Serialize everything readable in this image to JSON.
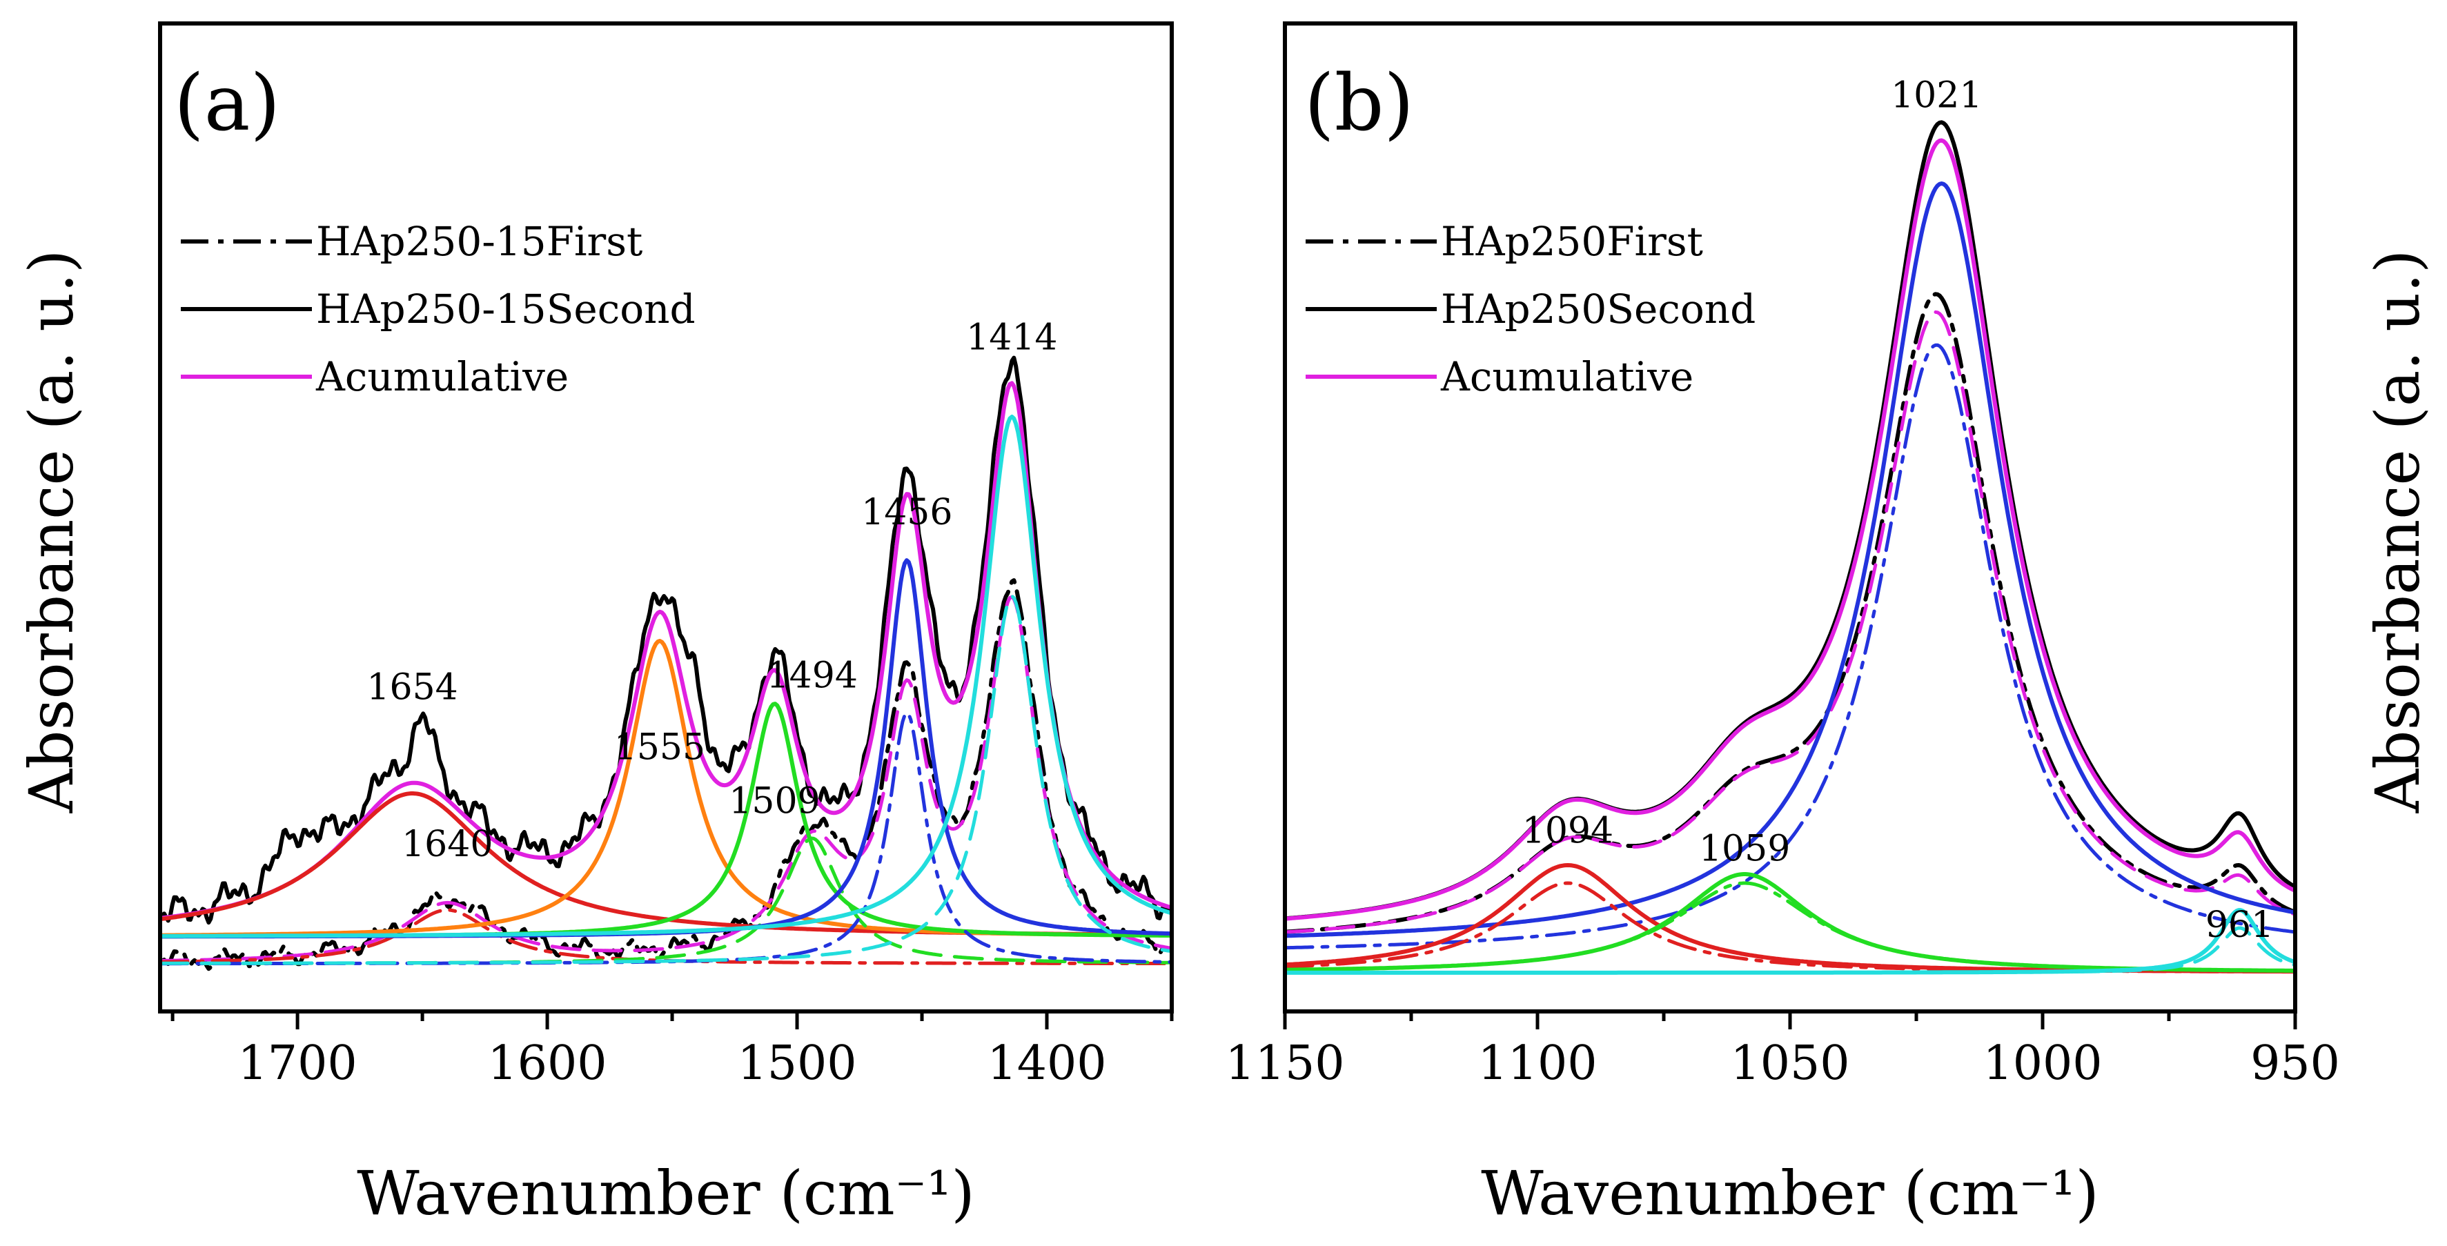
{
  "chart_data": [
    {
      "type": "line",
      "panel_label": "(a)",
      "xlabel": "Wavenumber (cm⁻¹)",
      "ylabel": "Absorbance (a. u.)",
      "xlim": [
        1755,
        1350
      ],
      "ylim": [
        0,
        1.0
      ],
      "ticks": [
        {
          "value": 1700,
          "label": "1700"
        },
        {
          "value": 1600,
          "label": "1600"
        },
        {
          "value": 1500,
          "label": "1500"
        },
        {
          "value": 1400,
          "label": "1400"
        }
      ],
      "legend": [
        {
          "label": "HAp250-15First",
          "dash": "dashdot",
          "color": "#000000"
        },
        {
          "label": "HAp250-15Second",
          "dash": "solid",
          "color": "#000000"
        },
        {
          "label": "Acumulative",
          "dash": "solid",
          "color": "#e020e0"
        }
      ],
      "peak_labels": [
        {
          "x": 1654,
          "y": 0.305,
          "text": "1654"
        },
        {
          "x": 1640,
          "y": 0.13,
          "text": "1640"
        },
        {
          "x": 1555,
          "y": 0.238,
          "text": "1555"
        },
        {
          "x": 1494,
          "y": 0.318,
          "text": "1494"
        },
        {
          "x": 1509,
          "y": 0.178,
          "text": "1509"
        },
        {
          "x": 1456,
          "y": 0.5,
          "text": "1456"
        },
        {
          "x": 1414,
          "y": 0.695,
          "text": "1414"
        }
      ],
      "series": [
        {
          "name": "HAp250-15Second",
          "color": "#000000",
          "dash": "solid",
          "width": 6,
          "baseline": 0.04,
          "noise": 0.018,
          "peaks": [
            {
              "x": 1654,
              "amp": 0.17,
              "w": 35
            },
            {
              "x": 1555,
              "amp": 0.34,
              "w": 15
            },
            {
              "x": 1509,
              "amp": 0.24,
              "w": 12
            },
            {
              "x": 1456,
              "amp": 0.45,
              "w": 11
            },
            {
              "x": 1414,
              "amp": 0.61,
              "w": 13
            },
            {
              "x": 1700,
              "amp": 0.05,
              "w": 10
            },
            {
              "x": 1650,
              "amp": 0.06,
              "w": 5
            },
            {
              "x": 1540,
              "amp": 0.06,
              "w": 5
            }
          ]
        },
        {
          "name": "HAp250-15First",
          "color": "#000000",
          "dash": "dashdot",
          "width": 6,
          "baseline": 0.01,
          "noise": 0.01,
          "peaks": [
            {
              "x": 1640,
              "amp": 0.07,
              "w": 22
            },
            {
              "x": 1494,
              "amp": 0.13,
              "w": 15
            },
            {
              "x": 1456,
              "amp": 0.29,
              "w": 10
            },
            {
              "x": 1414,
              "amp": 0.41,
              "w": 12
            }
          ]
        },
        {
          "name": "Acumulative",
          "color": "#e020e0",
          "dash": "solid",
          "width": 6,
          "baseline": 0.04,
          "peaks": [
            {
              "x": 1654,
              "amp": 0.16,
              "w": 35
            },
            {
              "x": 1555,
              "amp": 0.32,
              "w": 15
            },
            {
              "x": 1509,
              "amp": 0.23,
              "w": 12
            },
            {
              "x": 1456,
              "amp": 0.42,
              "w": 11
            },
            {
              "x": 1414,
              "amp": 0.58,
              "w": 13
            }
          ]
        },
        {
          "name": "Acumulative (First)",
          "color": "#e020e0",
          "dash": "dashed",
          "width": 5,
          "baseline": 0.01,
          "peaks": [
            {
              "x": 1640,
              "amp": 0.065,
              "w": 22
            },
            {
              "x": 1494,
              "amp": 0.12,
              "w": 15
            },
            {
              "x": 1456,
              "amp": 0.27,
              "w": 10
            },
            {
              "x": 1414,
              "amp": 0.39,
              "w": 12
            }
          ]
        },
        {
          "name": "1654",
          "color": "#e02020",
          "dash": "solid",
          "width": 6,
          "baseline": 0.04,
          "peaks": [
            {
              "x": 1654,
              "amp": 0.16,
              "w": 38
            }
          ]
        },
        {
          "name": "1640",
          "color": "#e02020",
          "dash": "dashdot",
          "width": 5,
          "baseline": 0.01,
          "peaks": [
            {
              "x": 1640,
              "amp": 0.06,
              "w": 22
            }
          ]
        },
        {
          "name": "1555",
          "color": "#ff8010",
          "dash": "solid",
          "width": 6,
          "baseline": 0.04,
          "peaks": [
            {
              "x": 1555,
              "amp": 0.33,
              "w": 15
            }
          ]
        },
        {
          "name": "1509",
          "color": "#22dd22",
          "dash": "solid",
          "width": 6,
          "baseline": 0.04,
          "peaks": [
            {
              "x": 1509,
              "amp": 0.26,
              "w": 12
            }
          ]
        },
        {
          "name": "1494",
          "color": "#22dd22",
          "dash": "dashed",
          "width": 5,
          "baseline": 0.01,
          "peaks": [
            {
              "x": 1494,
              "amp": 0.14,
              "w": 14
            }
          ]
        },
        {
          "name": "1456",
          "color": "#2233dd",
          "dash": "solid",
          "width": 6,
          "baseline": 0.04,
          "peaks": [
            {
              "x": 1456,
              "amp": 0.42,
              "w": 10
            }
          ]
        },
        {
          "name": "1456 (First)",
          "color": "#2233dd",
          "dash": "dashdot",
          "width": 5,
          "baseline": 0.01,
          "peaks": [
            {
              "x": 1456,
              "amp": 0.28,
              "w": 9
            }
          ]
        },
        {
          "name": "1414",
          "color": "#22dddd",
          "dash": "solid",
          "width": 6,
          "baseline": 0.04,
          "peaks": [
            {
              "x": 1414,
              "amp": 0.58,
              "w": 14
            }
          ]
        },
        {
          "name": "1414 (First)",
          "color": "#22dddd",
          "dash": "dashed",
          "width": 5,
          "baseline": 0.01,
          "peaks": [
            {
              "x": 1414,
              "amp": 0.41,
              "w": 12
            }
          ]
        }
      ]
    },
    {
      "type": "line",
      "panel_label": "(b)",
      "xlabel": "Wavenumber (cm⁻¹)",
      "ylabel": "Absorbance (a. u.)",
      "xlim": [
        1150,
        950
      ],
      "ylim": [
        0,
        1.0
      ],
      "ticks": [
        {
          "value": 1150,
          "label": "1150"
        },
        {
          "value": 1100,
          "label": "1100"
        },
        {
          "value": 1050,
          "label": "1050"
        },
        {
          "value": 1000,
          "label": "1000"
        },
        {
          "value": 950,
          "label": "950"
        }
      ],
      "legend": [
        {
          "label": "HAp250First",
          "dash": "dashdot",
          "color": "#000000"
        },
        {
          "label": "HAp250Second",
          "dash": "solid",
          "color": "#000000"
        },
        {
          "label": "Acumulative",
          "dash": "solid",
          "color": "#e020e0"
        }
      ],
      "peak_labels": [
        {
          "x": 1021,
          "y": 0.965,
          "text": "1021"
        },
        {
          "x": 1094,
          "y": 0.145,
          "text": "1094"
        },
        {
          "x": 1059,
          "y": 0.125,
          "text": "1059"
        },
        {
          "x": 961,
          "y": 0.04,
          "text": "961"
        }
      ],
      "series": [
        {
          "name": "HAp250Second",
          "color": "#000000",
          "dash": "solid",
          "width": 6,
          "baseline": 0.04,
          "peaks": [
            {
              "x": 1020,
              "amp": 0.89,
              "w": 15
            },
            {
              "x": 1094,
              "amp": 0.1,
              "w": 14
            },
            {
              "x": 1059,
              "amp": 0.11,
              "w": 15
            },
            {
              "x": 961,
              "amp": 0.08,
              "w": 5
            }
          ]
        },
        {
          "name": "Acumulative",
          "color": "#e020e0",
          "dash": "solid",
          "width": 6,
          "baseline": 0.04,
          "peaks": [
            {
              "x": 1020,
              "amp": 0.87,
              "w": 15
            },
            {
              "x": 1094,
              "amp": 0.1,
              "w": 14
            },
            {
              "x": 1059,
              "amp": 0.11,
              "w": 15
            },
            {
              "x": 961,
              "amp": 0.06,
              "w": 5
            }
          ]
        },
        {
          "name": "HAp250First",
          "color": "#000000",
          "dash": "dashdot",
          "width": 6,
          "baseline": 0.03,
          "peaks": [
            {
              "x": 1021,
              "amp": 0.71,
              "w": 14
            },
            {
              "x": 1094,
              "amp": 0.08,
              "w": 14
            },
            {
              "x": 1059,
              "amp": 0.1,
              "w": 15
            },
            {
              "x": 961,
              "amp": 0.05,
              "w": 5
            }
          ]
        },
        {
          "name": "Acumulative (First)",
          "color": "#e020e0",
          "dash": "dashed",
          "width": 5,
          "baseline": 0.03,
          "peaks": [
            {
              "x": 1021,
              "amp": 0.69,
              "w": 14
            },
            {
              "x": 1094,
              "amp": 0.08,
              "w": 14
            },
            {
              "x": 1059,
              "amp": 0.1,
              "w": 15
            },
            {
              "x": 961,
              "amp": 0.04,
              "w": 5
            }
          ]
        },
        {
          "name": "1021",
          "color": "#2233dd",
          "dash": "solid",
          "width": 6,
          "baseline": 0.03,
          "peaks": [
            {
              "x": 1020,
              "amp": 0.85,
              "w": 15
            }
          ]
        },
        {
          "name": "1021 (First)",
          "color": "#2233dd",
          "dash": "dashdot",
          "width": 5,
          "baseline": 0.02,
          "peaks": [
            {
              "x": 1021,
              "amp": 0.68,
              "w": 14
            }
          ]
        },
        {
          "name": "1094",
          "color": "#e02020",
          "dash": "solid",
          "width": 6,
          "baseline": 0.0,
          "peaks": [
            {
              "x": 1094,
              "amp": 0.12,
              "w": 16
            }
          ]
        },
        {
          "name": "1094 (First)",
          "color": "#e02020",
          "dash": "dashdot",
          "width": 5,
          "baseline": 0.0,
          "peaks": [
            {
              "x": 1094,
              "amp": 0.1,
              "w": 15
            }
          ]
        },
        {
          "name": "1059",
          "color": "#22dd22",
          "dash": "solid",
          "width": 6,
          "baseline": 0.0,
          "peaks": [
            {
              "x": 1059,
              "amp": 0.11,
              "w": 16
            }
          ]
        },
        {
          "name": "1059 (First)",
          "color": "#22dd22",
          "dash": "dashdot",
          "width": 5,
          "baseline": 0.0,
          "peaks": [
            {
              "x": 1059,
              "amp": 0.1,
              "w": 17
            }
          ]
        },
        {
          "name": "961",
          "color": "#22dddd",
          "dash": "solid",
          "width": 6,
          "baseline": 0.0,
          "peaks": [
            {
              "x": 961,
              "amp": 0.07,
              "w": 5
            }
          ]
        },
        {
          "name": "961 (First)",
          "color": "#22dddd",
          "dash": "dashed",
          "width": 5,
          "baseline": 0.0,
          "peaks": [
            {
              "x": 961,
              "amp": 0.05,
              "w": 5
            }
          ]
        }
      ]
    }
  ]
}
